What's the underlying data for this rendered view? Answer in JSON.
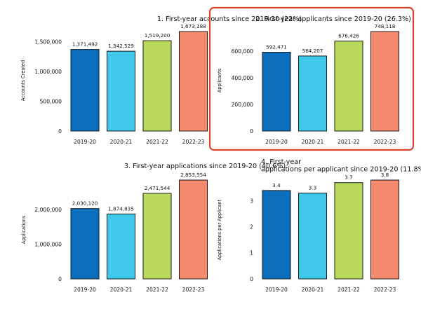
{
  "chart_data": [
    {
      "type": "bar",
      "title": "1. First-year accounts since 2019-20 (22%)",
      "ylabel": "Accounts Created",
      "categories": [
        "2019-20",
        "2020-21",
        "2021-22",
        "2022-23"
      ],
      "values": [
        1371492,
        1342529,
        1519200,
        1673188
      ],
      "labels": [
        "1,371,492",
        "1,342,529",
        "1,519,200",
        "1,673,188"
      ],
      "yticks": [
        0,
        500000,
        1000000,
        1500000
      ],
      "ytick_labels": [
        "0",
        "500,000",
        "1,000,000",
        "1,500,000"
      ],
      "ylim": [
        0,
        1673188
      ],
      "highlighted": false
    },
    {
      "type": "bar",
      "title": "2. First-year applicants since 2019-20 (26.3%)",
      "ylabel": "Applicants",
      "categories": [
        "2019-20",
        "2020-21",
        "2021-22",
        "2022-23"
      ],
      "values": [
        592471,
        564207,
        676426,
        748118
      ],
      "labels": [
        "592,471",
        "564,207",
        "676,426",
        "748,118"
      ],
      "yticks": [
        0,
        200000,
        400000,
        600000
      ],
      "ytick_labels": [
        "0",
        "200,000",
        "400,000",
        "600,000"
      ],
      "ylim": [
        0,
        748118
      ],
      "highlighted": true
    },
    {
      "type": "bar",
      "title": "3. First-year applications since 2019-20 (40.6%)",
      "ylabel": "Applications",
      "categories": [
        "2019-20",
        "2020-21",
        "2021-22",
        "2022-23"
      ],
      "values": [
        2030120,
        1874835,
        2471544,
        2853554
      ],
      "labels": [
        "2,030,120",
        "1,874,835",
        "2,471,544",
        "2,853,554"
      ],
      "yticks": [
        0,
        1000000,
        2000000
      ],
      "ytick_labels": [
        "0",
        "1,000,000",
        "2,000,000"
      ],
      "ylim": [
        0,
        2853554
      ],
      "highlighted": false
    },
    {
      "type": "bar",
      "title": "4. First-year\napplications per applicant since 2019-20 (11.8%)",
      "ylabel": "Applications per Applicant",
      "categories": [
        "2019-20",
        "2020-21",
        "2021-22",
        "2022-23"
      ],
      "values": [
        3.4,
        3.3,
        3.7,
        3.8
      ],
      "labels": [
        "3.4",
        "3.3",
        "3.7",
        "3.8"
      ],
      "yticks": [
        0,
        1,
        2,
        3
      ],
      "ytick_labels": [
        "0",
        "1",
        "2",
        "3"
      ],
      "ylim": [
        0,
        3.8
      ],
      "highlighted": false
    }
  ],
  "colors": {
    "bars": [
      "#0a6ebd",
      "#40c8ea",
      "#b8d95b",
      "#f58a6e"
    ],
    "bar_edge": "#1a1a1a",
    "highlight_border": "#d9452b"
  }
}
